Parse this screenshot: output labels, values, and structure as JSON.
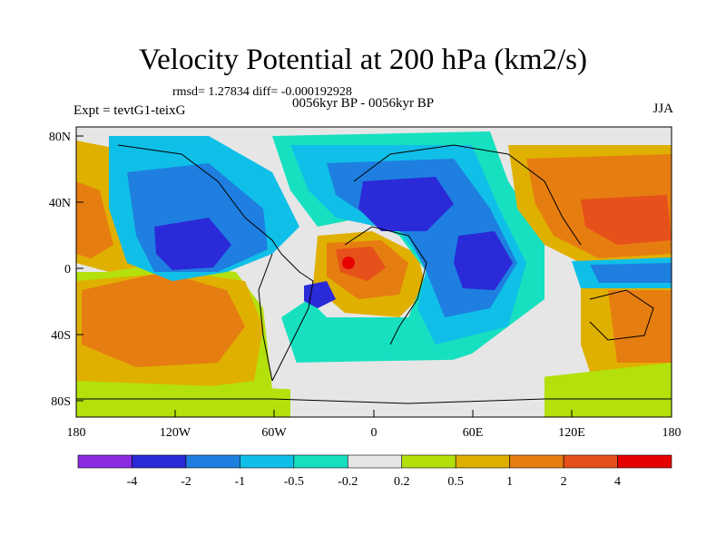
{
  "title": "Velocity Potential at 200 hPa (km2/s)",
  "stats_line": "rmsd= 1.27834 diff= -0.000192928",
  "period_line": "0056kyr BP - 0056kyr BP",
  "experiment_line": "Expt = tevtG1-teixG",
  "season_label": "JJA",
  "map": {
    "lat_ticks": [
      "80N",
      "40N",
      "0",
      "40S",
      "80S"
    ],
    "lon_ticks": [
      "180",
      "120W",
      "60W",
      "0",
      "60E",
      "120E",
      "180"
    ]
  },
  "colorbar": {
    "labels": [
      "-4",
      "-2",
      "-1",
      "-0.5",
      "-0.2",
      "0.2",
      "0.5",
      "1",
      "2",
      "4"
    ],
    "colors": [
      "#8a2be2",
      "#2a2ad8",
      "#1e7fe0",
      "#10bfe8",
      "#16e0c0",
      "#e6e6e6",
      "#b4e00c",
      "#e0b000",
      "#e67d10",
      "#e6501a",
      "#e60000"
    ]
  },
  "colors": {
    "land_outline": "#000000",
    "neutral": "#e6e6e6"
  }
}
